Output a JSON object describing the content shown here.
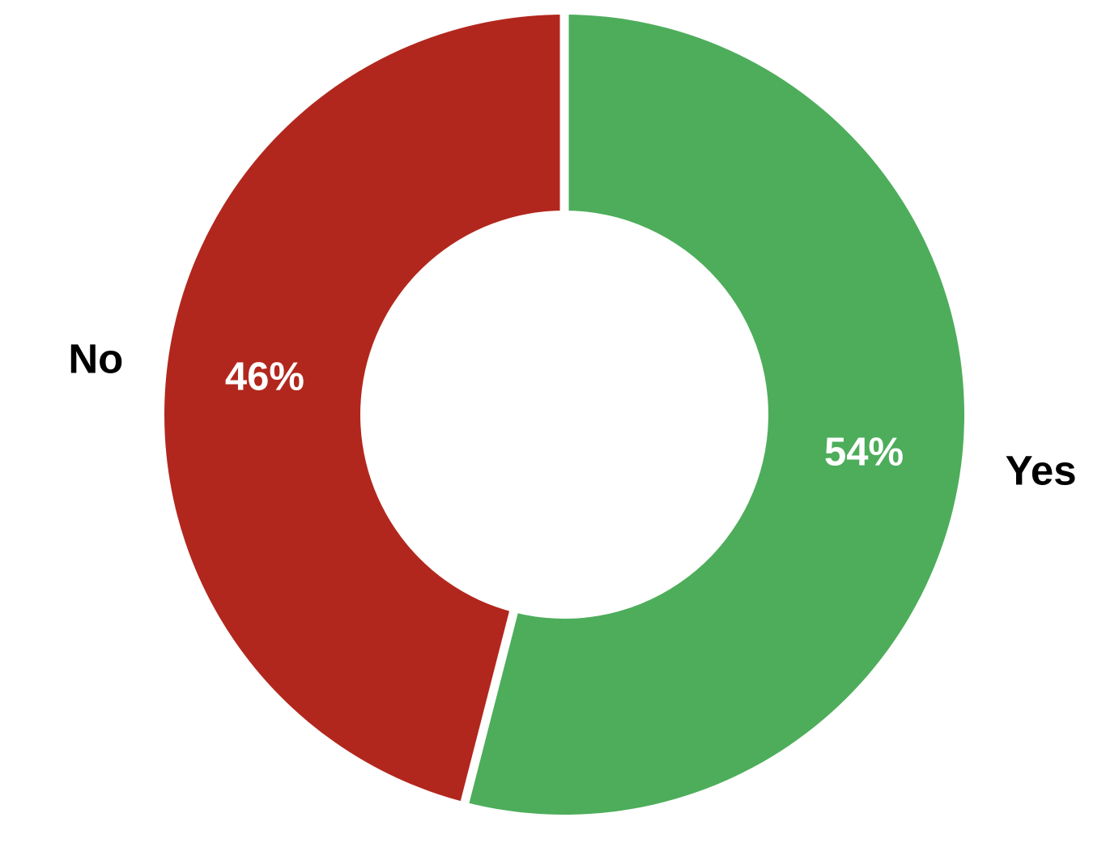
{
  "figure": {
    "background_color": "#ffffff"
  },
  "chart_data": {
    "type": "pie",
    "subtype": "donut",
    "title": "",
    "categories": [
      "Yes",
      "No"
    ],
    "values": [
      54,
      46
    ],
    "slice_labels": [
      "54%",
      "46%"
    ],
    "slice_colors": [
      "#4dad5b",
      "#b2271d"
    ],
    "slice_label_color": "#ffffff",
    "category_label_color": "#000000",
    "separator_color": "#ffffff",
    "start_angle_deg": 0,
    "direction": "clockwise",
    "donut_hole_ratio": 0.51,
    "legend": "none",
    "grid": "off"
  }
}
